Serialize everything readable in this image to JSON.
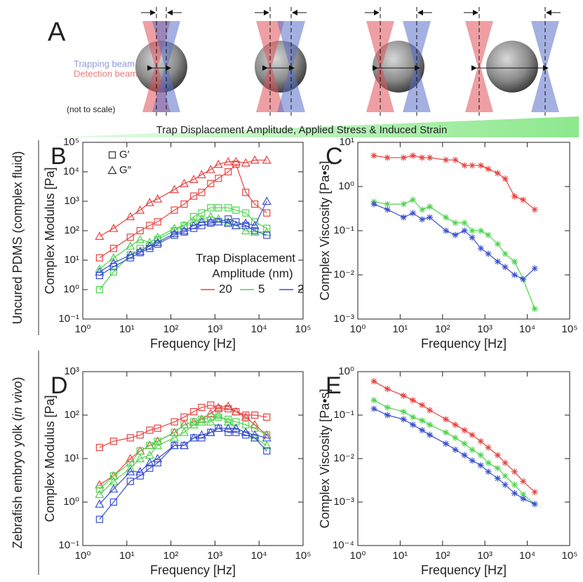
{
  "panel_a": {
    "letter": "A",
    "trapping_label": "Trapping beam",
    "detection_label": "Detection beam",
    "scale_note": "(not to scale)",
    "gradient_label": "Trap Displacement Amplitude, Applied Stress & Induced Strain"
  },
  "row_labels": [
    {
      "parts": [
        "Uncured PDMS (complex fluid)"
      ]
    },
    {
      "parts": [
        "Zebrafish embryo yolk (",
        "in vivo",
        ")"
      ]
    }
  ],
  "chart_data": [
    {
      "type": "line",
      "panel": "B",
      "xlabel": "Frequency [Hz]",
      "ylabel": "Complex Modulus [Pa]",
      "xscale": "log",
      "yscale": "log",
      "xlim": [
        1,
        100000
      ],
      "ylim": [
        0.1,
        100000
      ],
      "xticks": [
        {
          "value": 1,
          "label": "10⁰"
        },
        {
          "value": 10,
          "label": "10¹"
        },
        {
          "value": 100,
          "label": "10²"
        },
        {
          "value": 1000,
          "label": "10³"
        },
        {
          "value": 10000,
          "label": "10⁴"
        },
        {
          "value": 100000,
          "label": "10⁵"
        }
      ],
      "yticks": [
        {
          "value": 0.1,
          "label": "10⁻¹"
        },
        {
          "value": 1,
          "label": "10⁰"
        },
        {
          "value": 10,
          "label": "10¹"
        },
        {
          "value": 100,
          "label": "10²"
        },
        {
          "value": 1000,
          "label": "10³"
        },
        {
          "value": 10000,
          "label": "10⁴"
        },
        {
          "value": 100000,
          "label": "10⁵"
        }
      ],
      "x": [
        2.4,
        5,
        12,
        20,
        33,
        50,
        120,
        200,
        330,
        500,
        800,
        1200,
        2000,
        3000,
        5000,
        8000,
        15000
      ],
      "marker_legend": [
        {
          "label": "G′",
          "marker": "square"
        },
        {
          "label": "G″",
          "marker": "triangle"
        }
      ],
      "legend_title": [
        "Trap Displacement",
        "Amplitude (nm)"
      ],
      "series": [
        {
          "name": "20",
          "color": "#e8423f",
          "marker": "triangle",
          "values": [
            65,
            120,
            300,
            500,
            900,
            1200,
            2500,
            4000,
            5500,
            8000,
            12000,
            18000,
            22000,
            22000,
            20000,
            25000,
            25000
          ]
        },
        {
          "name": "20",
          "color": "#e8423f",
          "marker": "square",
          "values": [
            12,
            25,
            60,
            100,
            150,
            200,
            500,
            800,
            1500,
            2000,
            4000,
            6000,
            10000,
            18000,
            2000,
            800,
            400
          ]
        },
        {
          "name": "5",
          "color": "#4cd44c",
          "marker": "triangle",
          "values": [
            5,
            12,
            30,
            50,
            40,
            60,
            120,
            150,
            200,
            250,
            300,
            250,
            200,
            150,
            100,
            90,
            90
          ]
        },
        {
          "name": "5",
          "color": "#4cd44c",
          "marker": "square",
          "values": [
            1,
            4,
            15,
            25,
            30,
            50,
            100,
            150,
            300,
            400,
            600,
            600,
            600,
            500,
            400,
            200,
            120
          ]
        },
        {
          "name": "2",
          "color": "#3a4fd0",
          "marker": "triangle",
          "values": [
            4,
            8,
            15,
            20,
            30,
            40,
            80,
            100,
            150,
            200,
            200,
            200,
            180,
            150,
            180,
            150,
            1000
          ]
        },
        {
          "name": "2",
          "color": "#3a4fd0",
          "marker": "square",
          "values": [
            3,
            6,
            12,
            18,
            25,
            35,
            70,
            90,
            120,
            150,
            180,
            200,
            250,
            200,
            150,
            100,
            70
          ]
        }
      ]
    },
    {
      "type": "line",
      "panel": "C",
      "xlabel": "Frequency [Hz]",
      "ylabel": "Complex Viscosity [Pa•s]",
      "xscale": "log",
      "yscale": "log",
      "xlim": [
        1,
        100000
      ],
      "ylim": [
        0.001,
        10
      ],
      "xticks": [
        {
          "value": 1,
          "label": "10⁰"
        },
        {
          "value": 10,
          "label": "10¹"
        },
        {
          "value": 100,
          "label": "10²"
        },
        {
          "value": 1000,
          "label": "10³"
        },
        {
          "value": 10000,
          "label": "10⁴"
        },
        {
          "value": 100000,
          "label": "10⁵"
        }
      ],
      "yticks": [
        {
          "value": 0.001,
          "label": "10⁻³"
        },
        {
          "value": 0.01,
          "label": "10⁻²"
        },
        {
          "value": 0.1,
          "label": "10⁻¹"
        },
        {
          "value": 1,
          "label": "10⁰"
        },
        {
          "value": 10,
          "label": "10¹"
        }
      ],
      "x": [
        2.4,
        5,
        12,
        20,
        33,
        50,
        120,
        200,
        330,
        500,
        800,
        1200,
        2000,
        3000,
        5000,
        8000,
        15000
      ],
      "series": [
        {
          "name": "20",
          "color": "#e8423f",
          "marker": "asterisk",
          "values": [
            5,
            4.5,
            4.5,
            5,
            4.5,
            4.5,
            4,
            4,
            3,
            3,
            3,
            2.5,
            2,
            1.5,
            0.6,
            0.5,
            0.3
          ]
        },
        {
          "name": "5",
          "color": "#4cd44c",
          "marker": "asterisk",
          "values": [
            0.45,
            0.4,
            0.4,
            0.5,
            0.3,
            0.35,
            0.2,
            0.15,
            0.15,
            0.1,
            0.1,
            0.08,
            0.05,
            0.03,
            0.02,
            0.008,
            0.0017
          ]
        },
        {
          "name": "2",
          "color": "#3a4fd0",
          "marker": "asterisk",
          "values": [
            0.4,
            0.3,
            0.2,
            0.25,
            0.18,
            0.2,
            0.1,
            0.08,
            0.1,
            0.07,
            0.04,
            0.03,
            0.02,
            0.015,
            0.01,
            0.008,
            0.014
          ]
        }
      ]
    },
    {
      "type": "line",
      "panel": "D",
      "xlabel": "Frequency [Hz]",
      "ylabel": "Complex Modulus [Pa]",
      "xscale": "log",
      "yscale": "log",
      "xlim": [
        1,
        100000
      ],
      "ylim": [
        0.1,
        1000
      ],
      "xticks": [
        {
          "value": 1,
          "label": "10⁰"
        },
        {
          "value": 10,
          "label": "10¹"
        },
        {
          "value": 100,
          "label": "10²"
        },
        {
          "value": 1000,
          "label": "10³"
        },
        {
          "value": 10000,
          "label": "10⁴"
        },
        {
          "value": 100000,
          "label": "10⁵"
        }
      ],
      "yticks": [
        {
          "value": 0.1,
          "label": "10⁻¹"
        },
        {
          "value": 1,
          "label": "10⁰"
        },
        {
          "value": 10,
          "label": "10¹"
        },
        {
          "value": 100,
          "label": "10²"
        },
        {
          "value": 1000,
          "label": "10³"
        }
      ],
      "x": [
        2.4,
        5,
        12,
        20,
        33,
        50,
        120,
        200,
        330,
        500,
        800,
        1200,
        2000,
        3000,
        5000,
        8000,
        15000
      ],
      "series": [
        {
          "name": "20",
          "color": "#e8423f",
          "marker": "square",
          "values": [
            18,
            25,
            30,
            35,
            45,
            50,
            70,
            90,
            120,
            150,
            170,
            140,
            140,
            120,
            100,
            100,
            90
          ]
        },
        {
          "name": "20",
          "color": "#e8423f",
          "marker": "triangle",
          "values": [
            2.5,
            4,
            10,
            15,
            20,
            25,
            40,
            60,
            70,
            80,
            110,
            150,
            160,
            120,
            90,
            60,
            35
          ]
        },
        {
          "name": "5",
          "color": "#4cd44c",
          "marker": "square",
          "values": [
            2,
            4,
            8,
            15,
            20,
            25,
            40,
            60,
            70,
            80,
            90,
            90,
            80,
            70,
            60,
            50,
            35
          ]
        },
        {
          "name": "5",
          "color": "#4cd44c",
          "marker": "triangle",
          "values": [
            1.5,
            3,
            6,
            10,
            12,
            20,
            30,
            40,
            60,
            70,
            70,
            100,
            70,
            50,
            40,
            30,
            20
          ]
        },
        {
          "name": "2",
          "color": "#3a4fd0",
          "marker": "square",
          "values": [
            0.4,
            1,
            3,
            4,
            6,
            8,
            20,
            20,
            30,
            30,
            40,
            50,
            40,
            40,
            35,
            30,
            15
          ]
        },
        {
          "name": "2",
          "color": "#3a4fd0",
          "marker": "triangle",
          "values": [
            0.9,
            2,
            5,
            5,
            8,
            10,
            20,
            20,
            30,
            35,
            40,
            50,
            50,
            50,
            40,
            35,
            30
          ]
        }
      ]
    },
    {
      "type": "line",
      "panel": "E",
      "xlabel": "Frequency [Hz]",
      "ylabel": "Complex Viscosity [Pa•s]",
      "xscale": "log",
      "yscale": "log",
      "xlim": [
        1,
        100000
      ],
      "ylim": [
        0.0001,
        1
      ],
      "xticks": [
        {
          "value": 1,
          "label": "10⁰"
        },
        {
          "value": 10,
          "label": "10¹"
        },
        {
          "value": 100,
          "label": "10²"
        },
        {
          "value": 1000,
          "label": "10³"
        },
        {
          "value": 10000,
          "label": "10⁴"
        },
        {
          "value": 100000,
          "label": "10⁵"
        }
      ],
      "yticks": [
        {
          "value": 0.0001,
          "label": "10⁻⁴"
        },
        {
          "value": 0.001,
          "label": "10⁻³"
        },
        {
          "value": 0.01,
          "label": "10⁻²"
        },
        {
          "value": 0.1,
          "label": "10⁻¹"
        },
        {
          "value": 1,
          "label": "10⁰"
        }
      ],
      "x": [
        2.4,
        5,
        12,
        20,
        33,
        50,
        120,
        200,
        330,
        500,
        800,
        1200,
        2000,
        3000,
        5000,
        8000,
        15000
      ],
      "series": [
        {
          "name": "20",
          "color": "#e8423f",
          "marker": "asterisk",
          "values": [
            0.6,
            0.4,
            0.28,
            0.22,
            0.17,
            0.13,
            0.08,
            0.06,
            0.045,
            0.035,
            0.025,
            0.018,
            0.012,
            0.008,
            0.005,
            0.003,
            0.0017
          ]
        },
        {
          "name": "5",
          "color": "#4cd44c",
          "marker": "asterisk",
          "values": [
            0.22,
            0.15,
            0.12,
            0.09,
            0.075,
            0.06,
            0.04,
            0.03,
            0.022,
            0.016,
            0.012,
            0.008,
            0.006,
            0.004,
            0.0025,
            0.0015,
            0.0009
          ]
        },
        {
          "name": "2",
          "color": "#3a4fd0",
          "marker": "asterisk",
          "values": [
            0.14,
            0.1,
            0.08,
            0.06,
            0.045,
            0.035,
            0.022,
            0.016,
            0.012,
            0.009,
            0.007,
            0.005,
            0.0035,
            0.0025,
            0.0016,
            0.0012,
            0.0009
          ]
        }
      ]
    }
  ]
}
